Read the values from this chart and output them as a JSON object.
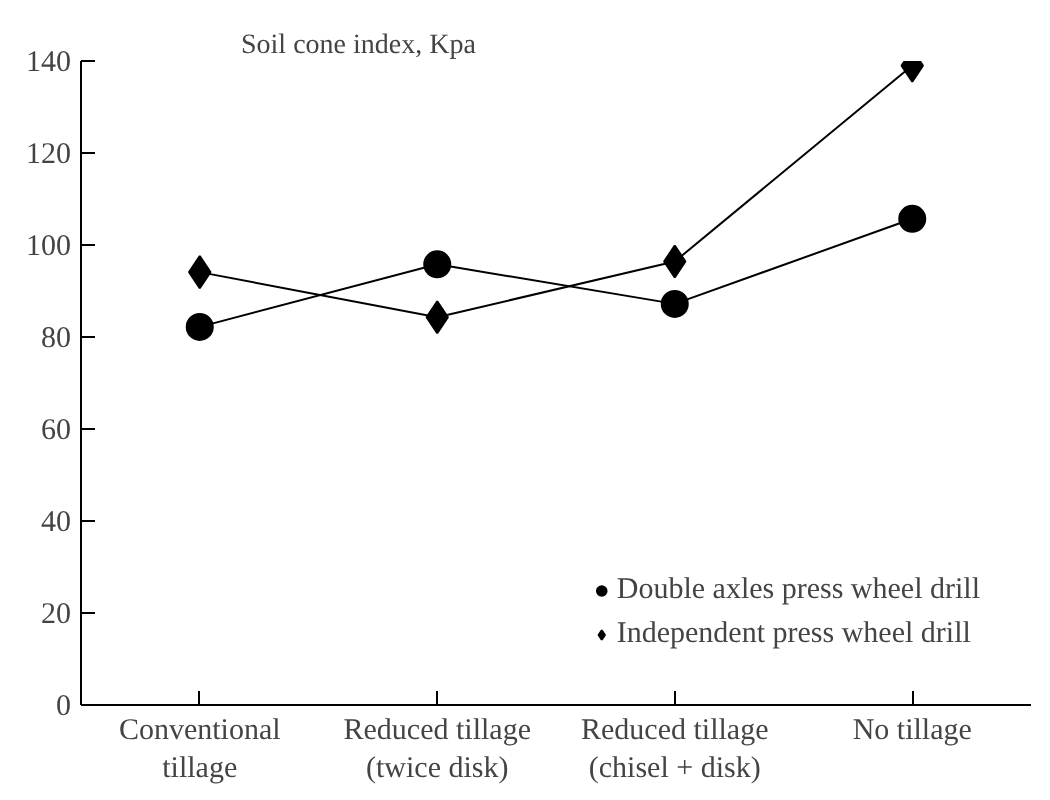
{
  "chart_data": {
    "type": "line",
    "ylabel": "Soil cone index, Kpa",
    "categories": [
      "Conventional tillage",
      "Reduced tillage (twice disk)",
      "Reduced tillage (chisel + disk)",
      "No tillage"
    ],
    "series": [
      {
        "name": "Double axles press wheel drill",
        "color": "#000000",
        "marker": "circle",
        "values": [
          82.2,
          95.8,
          87.2,
          105.7
        ]
      },
      {
        "name": "Independent press wheel drill",
        "color": "#000000",
        "marker": "diamond",
        "values": [
          94.1,
          84.3,
          96.4,
          139
        ]
      }
    ],
    "ylim": [
      0,
      140
    ],
    "yticks": [
      0,
      20,
      40,
      60,
      80,
      100,
      120,
      140
    ],
    "grid": false,
    "legend": "bottom right",
    "line_style": "solid"
  }
}
